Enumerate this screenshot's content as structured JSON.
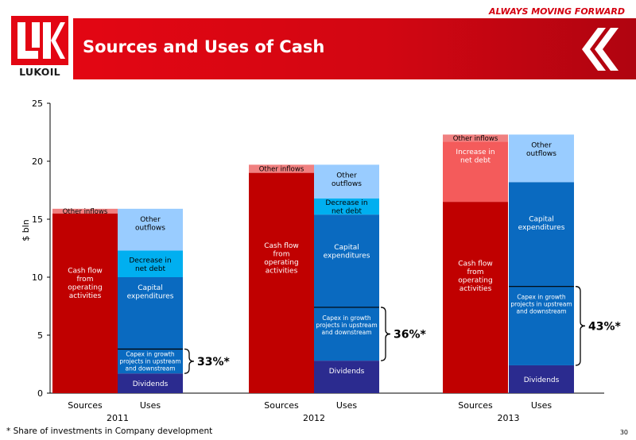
{
  "header": {
    "slogan": "ALWAYS MOVING FORWARD",
    "title": "Sources and Uses of Cash",
    "logo_text": "LUKOIL",
    "brand_color": "#e30613"
  },
  "footer": {
    "footnote": "* Share of investments in Company development",
    "page_number": "30"
  },
  "chart_data": {
    "type": "bar",
    "stacked": true,
    "ylabel": "$ bln",
    "ylim": [
      0,
      25
    ],
    "yticks": [
      0,
      5,
      10,
      15,
      20,
      25
    ],
    "grid": false,
    "groups": [
      {
        "year": "2011",
        "bars": [
          {
            "category": "Sources",
            "segments": [
              {
                "label": "Cash flow from operating activities",
                "value": 15.5,
                "color": "#c00000"
              },
              {
                "label": "Other inflows",
                "value": 0.4,
                "color": "#f08080"
              }
            ]
          },
          {
            "category": "Uses",
            "segments": [
              {
                "label": "Dividends",
                "value": 1.7,
                "color": "#2b2b8f"
              },
              {
                "label": "Capex in growth projects in upstream and downstream",
                "value": 2.1,
                "color": "#0a6ac0"
              },
              {
                "label": "Capital expenditures",
                "value": 6.2,
                "color": "#0a6ac0"
              },
              {
                "label": "Decrease in net debt",
                "value": 2.3,
                "color": "#00aff0"
              },
              {
                "label": "Other outflows",
                "value": 3.6,
                "color": "#99ccff"
              }
            ]
          }
        ],
        "annotation": "33%*"
      },
      {
        "year": "2012",
        "bars": [
          {
            "category": "Sources",
            "segments": [
              {
                "label": "Cash flow from operating activities",
                "value": 19.0,
                "color": "#c00000"
              },
              {
                "label": "Other inflows",
                "value": 0.7,
                "color": "#f08080"
              }
            ]
          },
          {
            "category": "Uses",
            "segments": [
              {
                "label": "Dividends",
                "value": 2.8,
                "color": "#2b2b8f"
              },
              {
                "label": "Capex in growth projects in upstream and downstream",
                "value": 4.6,
                "color": "#0a6ac0"
              },
              {
                "label": "Capital expenditures",
                "value": 8.0,
                "color": "#0a6ac0"
              },
              {
                "label": "Decrease in net debt",
                "value": 1.4,
                "color": "#00aff0"
              },
              {
                "label": "Other outflows",
                "value": 2.9,
                "color": "#99ccff"
              }
            ]
          }
        ],
        "annotation": "36%*"
      },
      {
        "year": "2013",
        "bars": [
          {
            "category": "Sources",
            "segments": [
              {
                "label": "Cash flow from operating activities",
                "value": 16.5,
                "color": "#c00000"
              },
              {
                "label": "Increase in net debt",
                "value": 5.2,
                "color": "#f45b5b"
              },
              {
                "label": "Other inflows",
                "value": 0.6,
                "color": "#f08080"
              }
            ]
          },
          {
            "category": "Uses",
            "segments": [
              {
                "label": "Dividends",
                "value": 2.4,
                "color": "#2b2b8f"
              },
              {
                "label": "Capex in growth projects in upstream and downstream",
                "value": 6.8,
                "color": "#0a6ac0"
              },
              {
                "label": "Capital expenditures",
                "value": 9.0,
                "color": "#0a6ac0"
              },
              {
                "label": "Other outflows",
                "value": 4.1,
                "color": "#99ccff"
              }
            ]
          }
        ],
        "annotation": "43%*"
      }
    ]
  }
}
